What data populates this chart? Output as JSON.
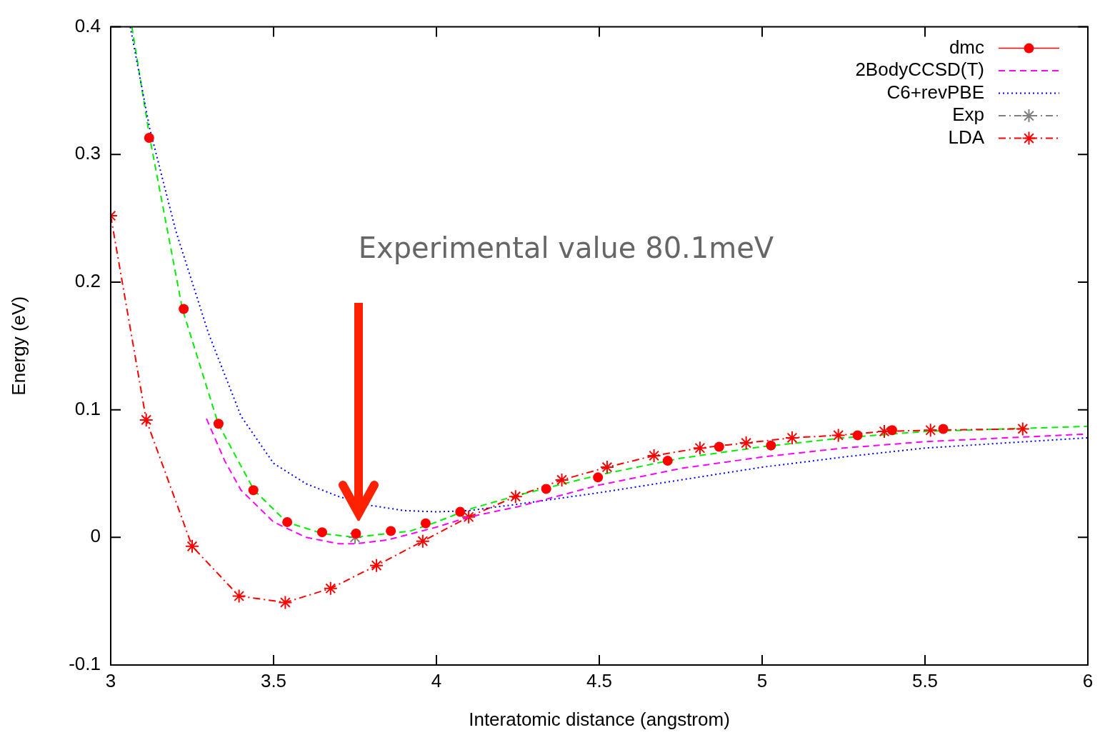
{
  "chart_data": {
    "type": "line",
    "xlabel": "Interatomic distance (angstrom)",
    "ylabel": "Energy (eV)",
    "xlim": [
      3,
      6
    ],
    "ylim": [
      -0.1,
      0.4
    ],
    "xticks": [
      3,
      3.5,
      4,
      4.5,
      5,
      5.5,
      6
    ],
    "yticks": [
      -0.1,
      0,
      0.1,
      0.2,
      0.3,
      0.4
    ],
    "grid": false,
    "legend": "top right",
    "annotations": [
      "Experimental value 80.1meV"
    ],
    "series": [
      {
        "name": "dmc",
        "type": "scatter",
        "color": "#ff0000",
        "marker": "circle",
        "x": [
          3.118,
          3.224,
          3.331,
          3.438,
          3.542,
          3.649,
          3.753,
          3.86,
          3.967,
          4.073,
          4.337,
          4.496,
          4.71,
          4.868,
          5.027,
          5.293,
          5.399,
          5.556
        ],
        "values": [
          0.313,
          0.179,
          0.089,
          0.037,
          0.012,
          0.004,
          0.003,
          0.005,
          0.011,
          0.02,
          0.038,
          0.047,
          0.06,
          0.071,
          0.072,
          0.08,
          0.084,
          0.085
        ]
      },
      {
        "name": "2BodyCCSD(T)",
        "type": "line",
        "color": "#ff00ff",
        "line_style": "dashed",
        "marker": "none",
        "x": [
          3.294,
          3.35,
          3.4,
          3.5,
          3.6,
          3.7,
          3.75,
          3.85,
          4,
          4.1,
          4.25,
          4.5,
          4.75,
          5,
          5.25,
          5.5,
          6
        ],
        "values": [
          0.093,
          0.06,
          0.037,
          0.012,
          0,
          -0.005,
          -0.005,
          -0.002,
          0.008,
          0.016,
          0.024,
          0.041,
          0.054,
          0.063,
          0.07,
          0.075,
          0.081
        ]
      },
      {
        "name": "C6+revPBE",
        "type": "line",
        "color": "#0000ff",
        "line_style": "dotted",
        "marker": "none",
        "x": [
          3.06,
          3.12,
          3.2,
          3.3,
          3.4,
          3.5,
          3.6,
          3.7,
          3.8,
          3.9,
          4,
          4.1,
          4.25,
          4.5,
          4.75,
          5,
          5.25,
          5.5,
          6
        ],
        "values": [
          0.4,
          0.32,
          0.24,
          0.16,
          0.095,
          0.058,
          0.042,
          0.032,
          0.025,
          0.021,
          0.02,
          0.021,
          0.026,
          0.035,
          0.045,
          0.055,
          0.063,
          0.07,
          0.078
        ]
      },
      {
        "name": "Exp",
        "type": "line",
        "color": "#808080",
        "line_style": "dashdot",
        "marker": "cross",
        "x": [
          3.75
        ],
        "values": [
          0
        ]
      },
      {
        "name": "LDA",
        "type": "line",
        "color": "#ff0000",
        "line_style": "dashdot",
        "marker": "cross",
        "x": [
          3,
          3.109,
          3.25,
          3.394,
          3.536,
          3.675,
          3.816,
          3.958,
          4.099,
          4.243,
          4.385,
          4.524,
          4.668,
          4.809,
          4.951,
          5.092,
          5.234,
          5.375,
          5.517,
          5.8
        ],
        "values": [
          0.252,
          0.092,
          -0.007,
          -0.046,
          -0.051,
          -0.04,
          -0.022,
          -0.003,
          0.016,
          0.032,
          0.045,
          0.055,
          0.064,
          0.07,
          0.074,
          0.078,
          0.08,
          0.083,
          0.084,
          0.085
        ]
      },
      {
        "type": "line",
        "color": "#00ee00",
        "line_style": "dashed",
        "marker": "none",
        "x": [
          3.065,
          3.12,
          3.22,
          3.33,
          3.44,
          3.54,
          3.65,
          3.75,
          3.92,
          4,
          4.1,
          4.25,
          4.5,
          4.75,
          5,
          5.25,
          5.5,
          6
        ],
        "values": [
          0.4,
          0.313,
          0.179,
          0.089,
          0.037,
          0.012,
          0.003,
          0,
          0.005,
          0.012,
          0.022,
          0.033,
          0.049,
          0.062,
          0.071,
          0.078,
          0.083,
          0.087
        ]
      }
    ]
  }
}
